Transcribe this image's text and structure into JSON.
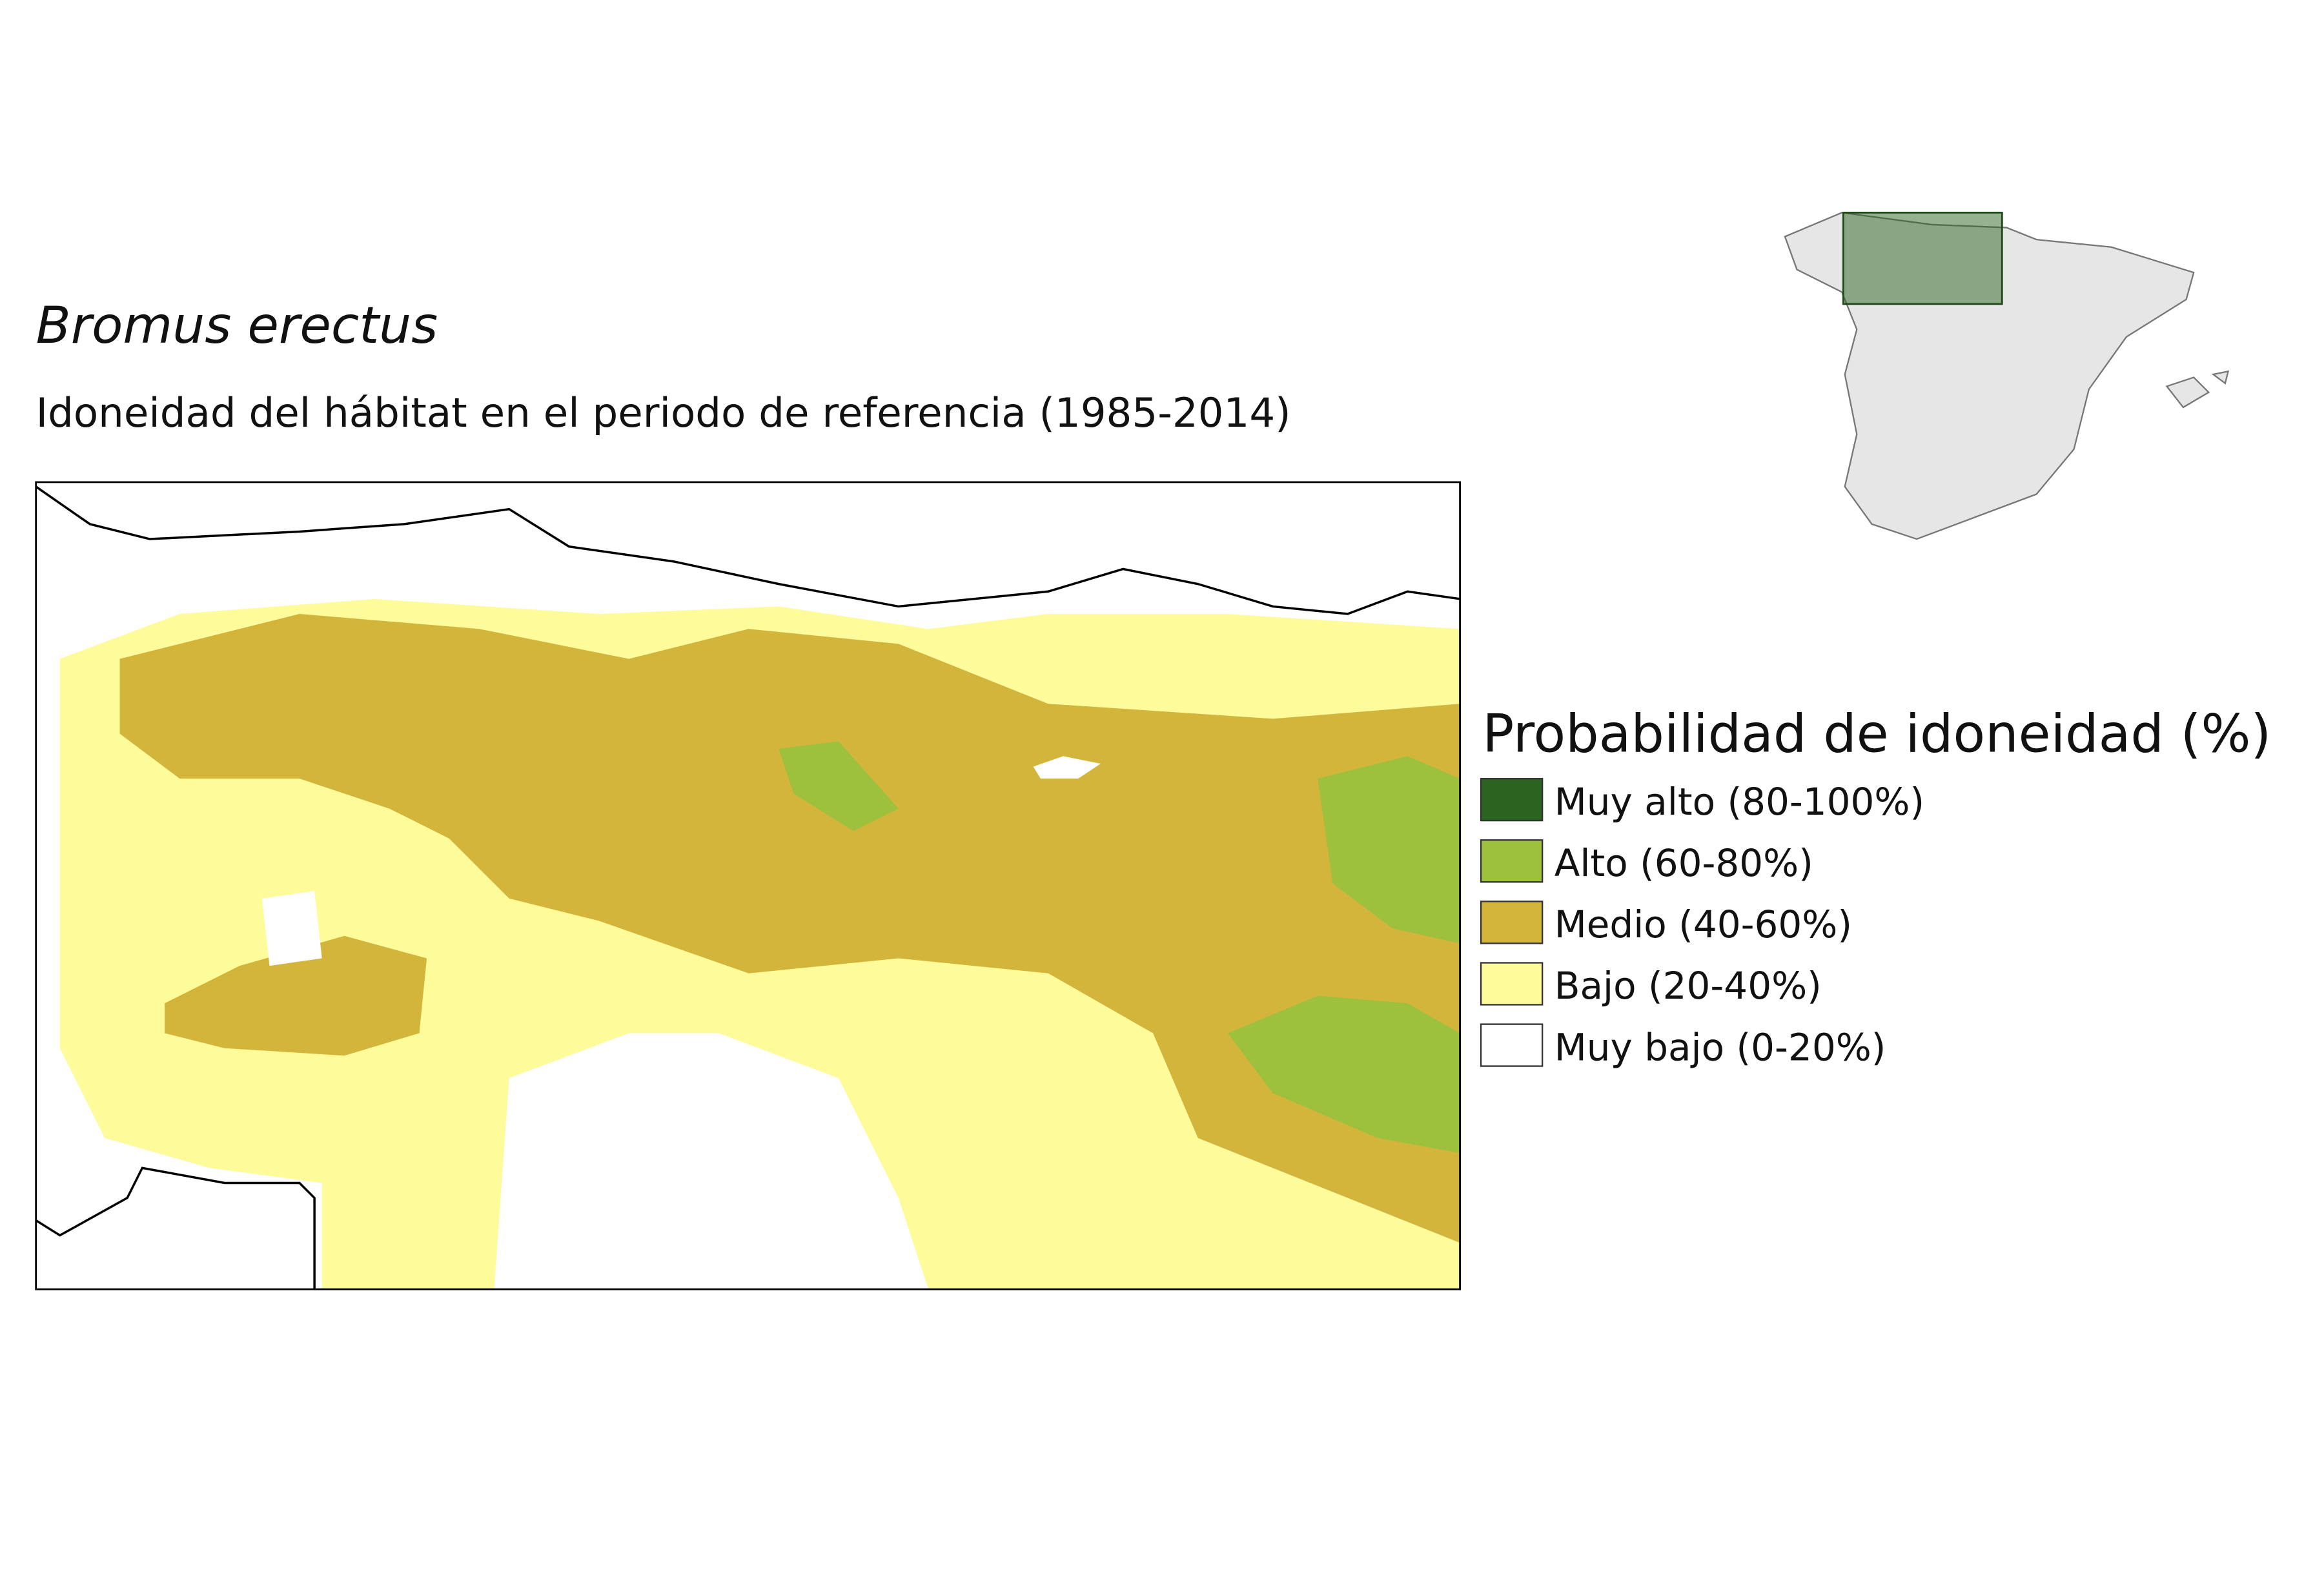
{
  "title": "Bromus erectus",
  "subtitle": "Idoneidad del hábitat en el periodo de referencia (1985-2014)",
  "legend": {
    "title": "Probabilidad de idoneidad (%)",
    "items": [
      {
        "label": "Muy alto (80-100%)",
        "color": "#2b6320"
      },
      {
        "label": "Alto (60-80%)",
        "color": "#9dc13d"
      },
      {
        "label": "Medio (40-60%)",
        "color": "#d4b53b"
      },
      {
        "label": "Bajo (20-40%)",
        "color": "#fdfb9a"
      },
      {
        "label": "Muy bajo (0-20%)",
        "color": "#ffffff"
      }
    ]
  }
}
